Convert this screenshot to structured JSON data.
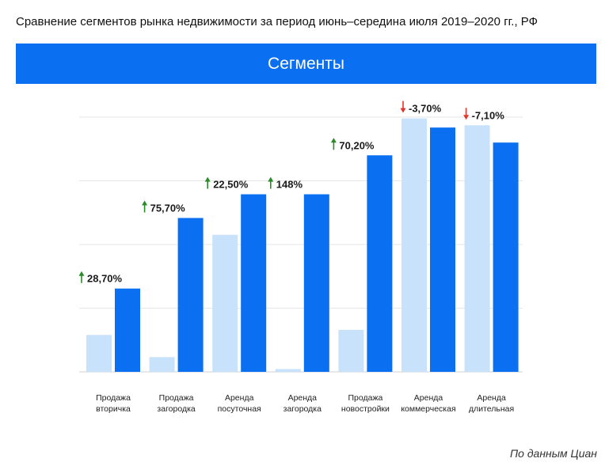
{
  "page": {
    "title": "Сравнение сегментов рынка недвижимости за период июнь–середина июля 2019–2020 гг., РФ",
    "banner": "Сегменты",
    "source": "По данным Циан"
  },
  "colors": {
    "banner": "#0a6ff0",
    "series_2019": "#c9e2fb",
    "series_2020": "#0a6ff0",
    "up_arrow": "#2a8a2a",
    "down_arrow": "#e0362c",
    "grid": "#e6e6e6"
  },
  "chart_data": {
    "type": "bar",
    "title": "",
    "xlabel": "",
    "ylabel": "",
    "grid": true,
    "ylim": [
      0,
      100
    ],
    "categories": [
      [
        "Продажа",
        "вторичка"
      ],
      [
        "Продажа",
        "загородка"
      ],
      [
        "Аренда",
        "посуточная"
      ],
      [
        "Аренда",
        "загородка"
      ],
      [
        "Продажа",
        "новостройки"
      ],
      [
        "Аренда",
        "коммерческая"
      ],
      [
        "Аренда",
        "длительная"
      ]
    ],
    "series": [
      {
        "values": [
          14.5,
          5.8,
          53.8,
          1.1,
          16.5,
          99.5,
          96.8
        ]
      },
      {
        "values": [
          32.7,
          60.4,
          69.7,
          69.7,
          85.0,
          95.9,
          90.0
        ]
      }
    ],
    "changes": [
      {
        "label": "28,70%",
        "direction": "up"
      },
      {
        "label": "75,70%",
        "direction": "up"
      },
      {
        "label": "22,50%",
        "direction": "up"
      },
      {
        "label": "148%",
        "direction": "up"
      },
      {
        "label": "70,20%",
        "direction": "up"
      },
      {
        "label": "-3,70%",
        "direction": "down"
      },
      {
        "label": "-7,10%",
        "direction": "down"
      }
    ]
  }
}
